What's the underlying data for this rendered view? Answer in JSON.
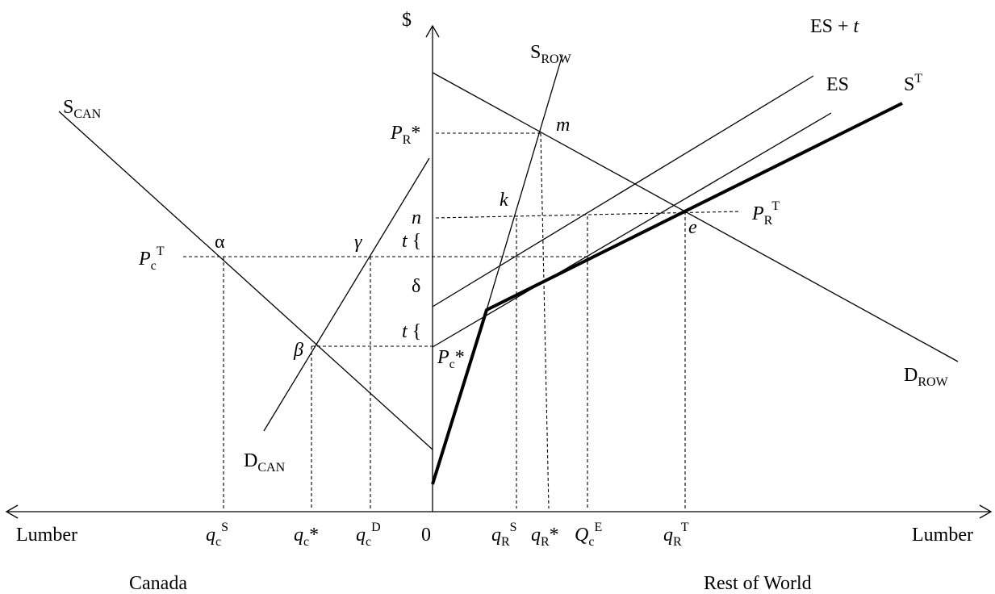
{
  "axes": {
    "y_label": "$",
    "origin_label": "0",
    "x_left_label": "Lumber",
    "x_right_label": "Lumber",
    "region_left": "Canada",
    "region_right": "Rest of World"
  },
  "curves": {
    "s_can": {
      "base": "S",
      "sub": "CAN"
    },
    "d_can": {
      "base": "D",
      "sub": "CAN"
    },
    "s_row": {
      "base": "S",
      "sub": "ROW"
    },
    "d_row": {
      "base": "D",
      "sub": "ROW"
    },
    "es": {
      "text": "ES"
    },
    "es_t": {
      "base": "ES + ",
      "it": "t"
    },
    "s_t": {
      "base": "S",
      "sup": "T"
    }
  },
  "points": {
    "alpha": "α",
    "beta": "β",
    "gamma": "γ",
    "delta": "δ",
    "k": "k",
    "m": "m",
    "n": "n",
    "e": "e"
  },
  "price_labels": {
    "p_c_t": {
      "base": "P",
      "sub": "c",
      "sup": "T"
    },
    "p_r_star": {
      "base": "P",
      "sub": "R",
      "suffix": "*"
    },
    "p_r_t": {
      "base": "P",
      "sub": "R",
      "sup": "T"
    },
    "p_c_star": {
      "base": "P",
      "sub": "c",
      "suffix": "*"
    },
    "t_upper": {
      "it": "t",
      "brace": " {"
    },
    "t_lower": {
      "it": "t",
      "brace": " {"
    }
  },
  "quantity_labels": {
    "q_c_s": {
      "base": "q",
      "sub": "c",
      "sup": "S"
    },
    "q_c_star": {
      "base": "q",
      "sub": "c",
      "suffix": "*"
    },
    "q_c_d": {
      "base": "q",
      "sub": "c",
      "sup": "D"
    },
    "q_r_s": {
      "base": "q",
      "sub": "R",
      "sup": "S"
    },
    "q_r_star": {
      "base": "q",
      "sub": "R",
      "suffix": "*"
    },
    "q_c_e": {
      "base": "Q",
      "sub": "c",
      "sup": "E"
    },
    "q_r_t": {
      "base": "q",
      "sub": "R",
      "sup": "T"
    }
  }
}
